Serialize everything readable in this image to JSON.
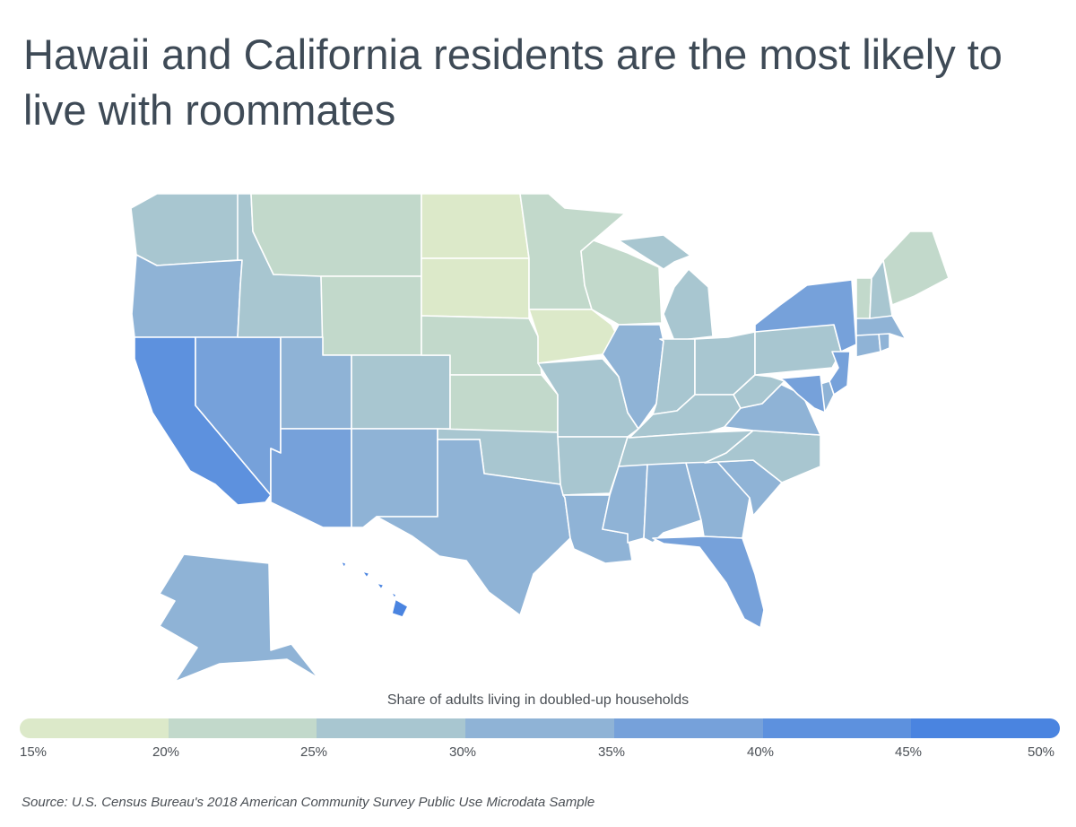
{
  "title": "Hawaii and California residents are the most likely to live with roommates",
  "legend": {
    "title": "Share of adults living in doubled-up households",
    "ticks": [
      "15%",
      "20%",
      "25%",
      "30%",
      "35%",
      "40%",
      "45%",
      "50%"
    ],
    "bins": [
      {
        "range": "15%-20%",
        "color": "#dce9c9"
      },
      {
        "range": "20%-25%",
        "color": "#c2d9cb"
      },
      {
        "range": "25%-30%",
        "color": "#a8c6d0"
      },
      {
        "range": "30%-35%",
        "color": "#8fb3d6"
      },
      {
        "range": "35%-40%",
        "color": "#76a1da"
      },
      {
        "range": "40%-45%",
        "color": "#5d91de"
      },
      {
        "range": "45%-50%",
        "color": "#4a84e0"
      }
    ]
  },
  "source": "Source: U.S. Census Bureau's 2018 American Community Survey Public Use Microdata Sample",
  "states": {
    "WA": "#a8c6d0",
    "OR": "#8fb3d6",
    "CA": "#5d91de",
    "NV": "#76a1da",
    "ID": "#a8c6d0",
    "MT": "#c2d9cb",
    "WY": "#c2d9cb",
    "UT": "#8fb3d6",
    "AZ": "#76a1da",
    "CO": "#a8c6d0",
    "NM": "#8fb3d6",
    "ND": "#dce9c9",
    "SD": "#dce9c9",
    "NE": "#c2d9cb",
    "KS": "#c2d9cb",
    "OK": "#a8c6d0",
    "TX": "#8fb3d6",
    "MN": "#c2d9cb",
    "IA": "#dce9c9",
    "MO": "#a8c6d0",
    "AR": "#a8c6d0",
    "LA": "#8fb3d6",
    "WI": "#c2d9cb",
    "IL": "#8fb3d6",
    "MI": "#a8c6d0",
    "IN": "#a8c6d0",
    "OH": "#a8c6d0",
    "KY": "#a8c6d0",
    "TN": "#a8c6d0",
    "MS": "#8fb3d6",
    "AL": "#8fb3d6",
    "GA": "#8fb3d6",
    "FL": "#76a1da",
    "SC": "#8fb3d6",
    "NC": "#a8c6d0",
    "VA": "#8fb3d6",
    "WV": "#a8c6d0",
    "PA": "#a8c6d0",
    "NY": "#76a1da",
    "NJ": "#76a1da",
    "DE": "#8fb3d6",
    "MD": "#76a1da",
    "CT": "#8fb3d6",
    "RI": "#8fb3d6",
    "MA": "#8fb3d6",
    "VT": "#c2d9cb",
    "NH": "#a8c6d0",
    "ME": "#c2d9cb",
    "AK": "#8fb3d6",
    "HI": "#4a84e0"
  }
}
